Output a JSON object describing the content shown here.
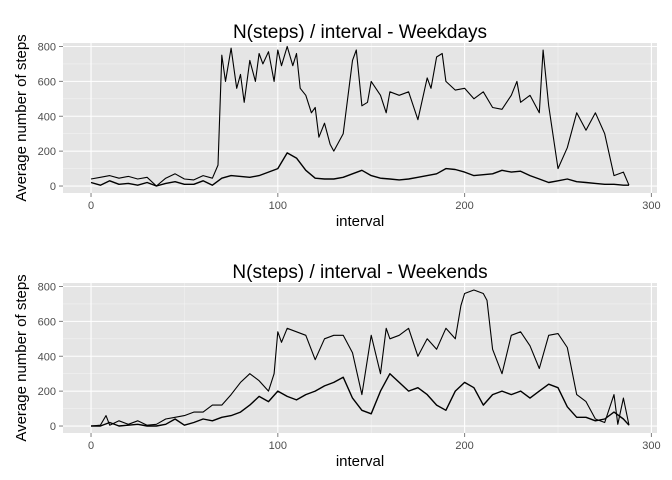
{
  "chart_data": [
    {
      "type": "line",
      "title": "N(steps) / interval - Weekdays",
      "xlabel": "interval",
      "ylabel": "Average number of steps",
      "xlim": [
        -15,
        303
      ],
      "ylim": [
        -40,
        820
      ],
      "x_ticks": [
        0,
        100,
        200,
        300
      ],
      "y_ticks": [
        0,
        200,
        400,
        600,
        800
      ],
      "grid": true,
      "legend": "none",
      "line_color": "#000000",
      "x": [
        0,
        5,
        10,
        15,
        20,
        25,
        30,
        35,
        40,
        45,
        50,
        55,
        60,
        65,
        70,
        75,
        80,
        85,
        90,
        95,
        100,
        105,
        110,
        115,
        120,
        125,
        130,
        135,
        140,
        145,
        150,
        155,
        160,
        165,
        170,
        175,
        180,
        185,
        190,
        195,
        200,
        205,
        210,
        215,
        220,
        225,
        230,
        235,
        240,
        245,
        250,
        255,
        260,
        265,
        270,
        275,
        280,
        285,
        288
      ],
      "series": [
        {
          "x": [
            0,
            5,
            10,
            15,
            20,
            25,
            30,
            35,
            40,
            45,
            50,
            55,
            60,
            65,
            70,
            75,
            80,
            85,
            90,
            95,
            100,
            105,
            110,
            115,
            120,
            125,
            130,
            135,
            140,
            145,
            150,
            155,
            160,
            165,
            170,
            175,
            180,
            185,
            190,
            195,
            200,
            205,
            210,
            215,
            220,
            225,
            230,
            235,
            240,
            245,
            250,
            255,
            260,
            265,
            270,
            275,
            280,
            285,
            288
          ],
          "values": [
            20,
            5,
            30,
            10,
            15,
            5,
            20,
            0,
            15,
            25,
            10,
            10,
            30,
            5,
            45,
            60,
            55,
            50,
            60,
            80,
            100,
            190,
            160,
            90,
            45,
            40,
            40,
            50,
            70,
            90,
            60,
            45,
            40,
            35,
            40,
            50,
            60,
            70,
            100,
            95,
            80,
            60,
            65,
            70,
            90,
            80,
            85,
            60,
            40,
            20,
            30,
            40,
            25,
            20,
            15,
            10,
            10,
            5,
            5
          ]
        },
        {
          "x": [
            0,
            5,
            10,
            15,
            20,
            25,
            30,
            35,
            40,
            45,
            50,
            55,
            60,
            65,
            68,
            70,
            72,
            75,
            78,
            80,
            82,
            85,
            88,
            90,
            92,
            95,
            98,
            100,
            102,
            105,
            108,
            110,
            112,
            115,
            118,
            120,
            122,
            125,
            128,
            130,
            135,
            140,
            142,
            145,
            148,
            150,
            155,
            158,
            160,
            165,
            170,
            175,
            180,
            182,
            185,
            188,
            190,
            195,
            200,
            205,
            210,
            215,
            220,
            225,
            228,
            230,
            235,
            240,
            242,
            245,
            250,
            255,
            260,
            265,
            270,
            275,
            280,
            285,
            288
          ],
          "values": [
            40,
            50,
            60,
            45,
            55,
            40,
            50,
            0,
            45,
            70,
            40,
            35,
            60,
            45,
            120,
            750,
            600,
            790,
            560,
            640,
            480,
            720,
            600,
            760,
            700,
            770,
            600,
            780,
            690,
            800,
            690,
            760,
            560,
            520,
            420,
            450,
            280,
            360,
            240,
            200,
            300,
            720,
            780,
            460,
            480,
            600,
            520,
            420,
            540,
            520,
            540,
            380,
            620,
            560,
            740,
            760,
            600,
            550,
            560,
            500,
            540,
            450,
            440,
            520,
            600,
            480,
            520,
            420,
            780,
            460,
            100,
            220,
            420,
            320,
            420,
            300,
            60,
            80,
            5
          ]
        }
      ]
    },
    {
      "type": "line",
      "title": "N(steps) / interval - Weekends",
      "xlabel": "interval",
      "ylabel": "Average number of steps",
      "xlim": [
        -15,
        303
      ],
      "ylim": [
        -40,
        820
      ],
      "x_ticks": [
        0,
        100,
        200,
        300
      ],
      "y_ticks": [
        0,
        200,
        400,
        600,
        800
      ],
      "grid": true,
      "legend": "none",
      "line_color": "#000000",
      "series": [
        {
          "x": [
            0,
            5,
            10,
            15,
            20,
            25,
            30,
            35,
            40,
            45,
            50,
            55,
            60,
            65,
            70,
            75,
            80,
            85,
            90,
            95,
            100,
            105,
            110,
            115,
            120,
            125,
            130,
            135,
            140,
            145,
            150,
            155,
            160,
            165,
            170,
            175,
            180,
            185,
            190,
            195,
            200,
            205,
            210,
            215,
            220,
            225,
            230,
            235,
            240,
            245,
            250,
            255,
            260,
            265,
            270,
            275,
            280,
            285,
            288
          ],
          "values": [
            0,
            0,
            20,
            0,
            5,
            10,
            0,
            0,
            10,
            40,
            5,
            20,
            40,
            30,
            50,
            60,
            80,
            120,
            170,
            140,
            200,
            170,
            150,
            180,
            200,
            230,
            250,
            280,
            160,
            90,
            70,
            200,
            300,
            250,
            200,
            220,
            180,
            120,
            90,
            200,
            250,
            220,
            120,
            180,
            200,
            180,
            200,
            160,
            200,
            240,
            220,
            110,
            50,
            50,
            30,
            40,
            80,
            40,
            5
          ]
        },
        {
          "x": [
            0,
            5,
            8,
            10,
            15,
            20,
            25,
            30,
            35,
            40,
            45,
            50,
            55,
            60,
            65,
            70,
            75,
            80,
            85,
            90,
            95,
            98,
            100,
            102,
            105,
            110,
            115,
            120,
            125,
            130,
            135,
            140,
            145,
            150,
            155,
            158,
            160,
            165,
            170,
            175,
            180,
            185,
            190,
            195,
            198,
            200,
            205,
            210,
            212,
            215,
            220,
            225,
            230,
            235,
            240,
            245,
            250,
            255,
            260,
            265,
            270,
            275,
            280,
            282,
            285,
            288
          ],
          "values": [
            0,
            5,
            60,
            5,
            30,
            10,
            30,
            5,
            10,
            40,
            50,
            60,
            80,
            80,
            120,
            120,
            180,
            250,
            300,
            260,
            200,
            300,
            540,
            480,
            560,
            540,
            520,
            380,
            500,
            520,
            520,
            420,
            180,
            520,
            300,
            560,
            500,
            520,
            560,
            400,
            500,
            440,
            560,
            500,
            690,
            760,
            780,
            760,
            720,
            440,
            300,
            520,
            540,
            460,
            330,
            520,
            530,
            450,
            180,
            140,
            40,
            20,
            180,
            10,
            160,
            5
          ]
        }
      ]
    }
  ]
}
